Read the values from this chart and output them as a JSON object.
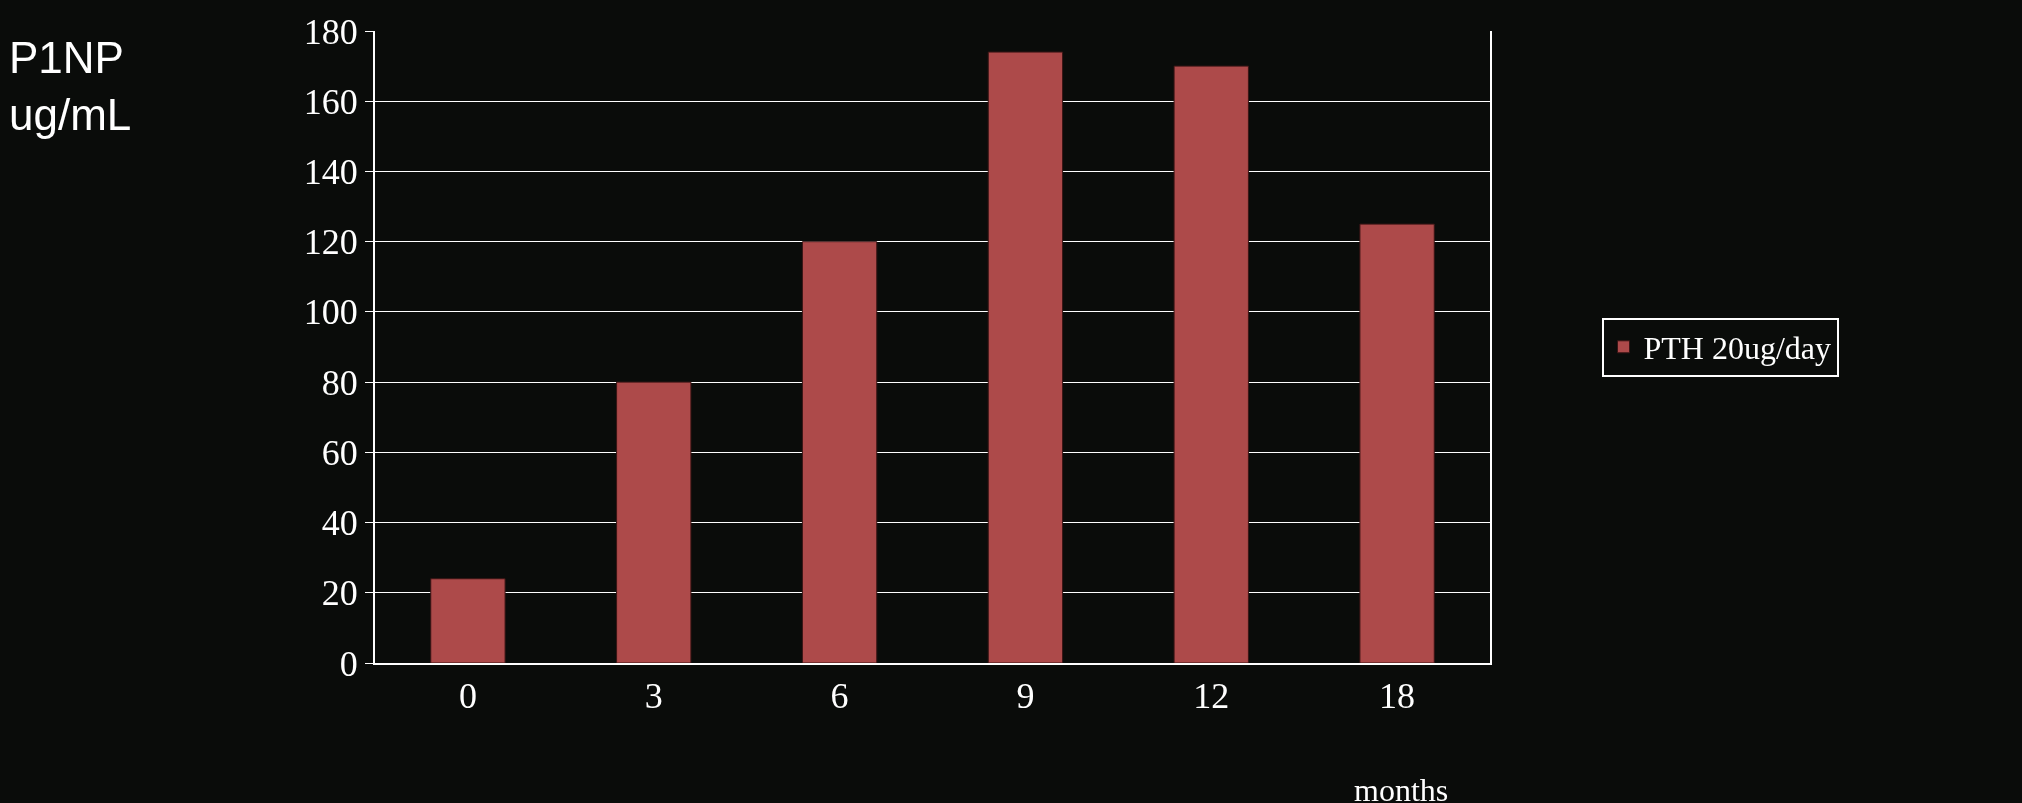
{
  "chart_data": {
    "type": "bar",
    "xlabel": "months",
    "ylabel": "P1NP\nug/mL",
    "categories": [
      "0",
      "3",
      "6",
      "9",
      "12",
      "18"
    ],
    "series": [
      {
        "name": "PTH 20ug/day",
        "color": "#ad4a4a",
        "values": [
          24,
          80,
          120,
          174,
          170,
          125
        ]
      }
    ],
    "ylim": [
      0,
      180
    ],
    "yticks": [
      0,
      20,
      40,
      60,
      80,
      100,
      120,
      140,
      160,
      180
    ],
    "grid": "y",
    "legend": "right"
  }
}
